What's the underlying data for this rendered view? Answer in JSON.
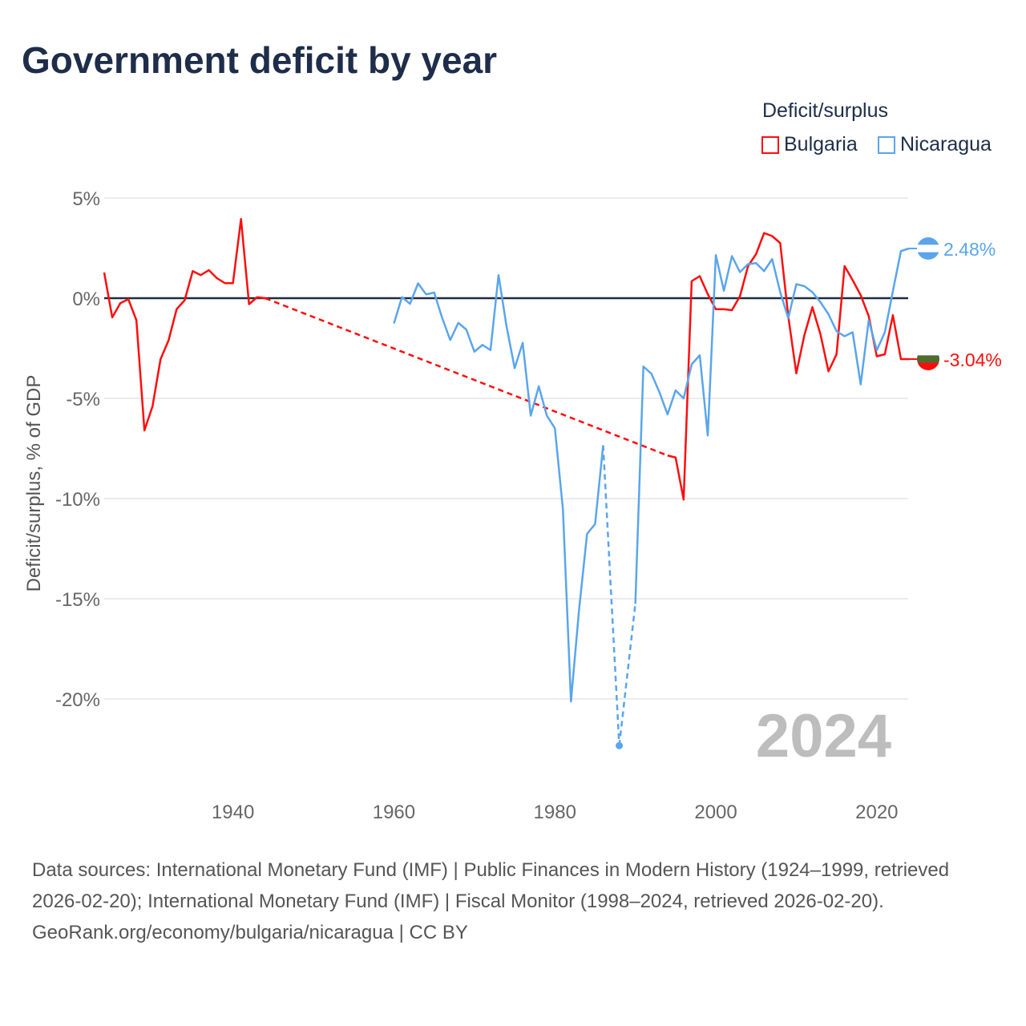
{
  "title": "Government deficit by year",
  "legend": {
    "title": "Deficit/surplus",
    "placement": "top-right"
  },
  "footer": {
    "sources": "Data sources: International Monetary Fund (IMF) | Public Finances in Modern History (1924–1999, retrieved 2026-02-20); International Monetary Fund (IMF) | Fiscal Monitor (1998–2024, retrieved 2026-02-20).",
    "credit": "GeoRank.org/economy/bulgaria/nicaragua | CC BY"
  },
  "chart_data": {
    "type": "line",
    "title": "Government deficit by year",
    "xlabel": "",
    "ylabel": "Deficit/surplus, % of GDP",
    "xlim": [
      1924,
      2024
    ],
    "ylim": [
      -24,
      5.5
    ],
    "x_ticks": [
      {
        "v": 1940,
        "label": "1940"
      },
      {
        "v": 1960,
        "label": "1960"
      },
      {
        "v": 1980,
        "label": "1980"
      },
      {
        "v": 2000,
        "label": "2000"
      },
      {
        "v": 2020,
        "label": "2020"
      }
    ],
    "y_ticks": [
      {
        "v": 5,
        "label": "5%"
      },
      {
        "v": 0,
        "label": "0%"
      },
      {
        "v": -5,
        "label": "-5%"
      },
      {
        "v": -10,
        "label": "-10%"
      },
      {
        "v": -15,
        "label": "-15%"
      },
      {
        "v": -20,
        "label": "-20%"
      }
    ],
    "grid": true,
    "watermark_year": "2024",
    "series": [
      {
        "name": "Bulgaria",
        "color": "#ff0d0d",
        "end_label": "-3.04%",
        "flag": [
          "#ffffff",
          "#4f6b2e",
          "#ff0d0d"
        ],
        "points": [
          [
            1924,
            1.28
          ],
          [
            1925,
            -0.96
          ],
          [
            1926,
            -0.25
          ],
          [
            1927,
            -0.05
          ],
          [
            1928,
            -1.1
          ],
          [
            1929,
            -6.6
          ],
          [
            1930,
            -5.4
          ],
          [
            1931,
            -3.05
          ],
          [
            1932,
            -2.1
          ],
          [
            1933,
            -0.55
          ],
          [
            1934,
            -0.1
          ],
          [
            1935,
            1.35
          ],
          [
            1936,
            1.15
          ],
          [
            1937,
            1.4
          ],
          [
            1938,
            1.0
          ],
          [
            1939,
            0.75
          ],
          [
            1940,
            0.75
          ],
          [
            1941,
            3.95
          ],
          [
            1942,
            -0.3
          ],
          [
            1943,
            0.05
          ],
          [
            1944,
            0.0
          ],
          [
            1994,
            -7.85
          ],
          [
            1995,
            -7.95
          ],
          [
            1996,
            -10.05
          ],
          [
            1997,
            0.85
          ],
          [
            1998,
            1.1
          ],
          [
            1999,
            0.2
          ],
          [
            2000,
            -0.55
          ],
          [
            2001,
            -0.55
          ],
          [
            2002,
            -0.6
          ],
          [
            2003,
            0.1
          ],
          [
            2004,
            1.6
          ],
          [
            2005,
            2.2
          ],
          [
            2006,
            3.25
          ],
          [
            2007,
            3.1
          ],
          [
            2008,
            2.75
          ],
          [
            2009,
            -0.9
          ],
          [
            2010,
            -3.75
          ],
          [
            2011,
            -1.85
          ],
          [
            2012,
            -0.45
          ],
          [
            2013,
            -1.8
          ],
          [
            2014,
            -3.65
          ],
          [
            2015,
            -2.8
          ],
          [
            2016,
            1.6
          ],
          [
            2017,
            0.9
          ],
          [
            2018,
            0.15
          ],
          [
            2019,
            -0.9
          ],
          [
            2020,
            -2.9
          ],
          [
            2021,
            -2.8
          ],
          [
            2022,
            -0.85
          ],
          [
            2023,
            -3.04
          ],
          [
            2024,
            -3.04
          ]
        ]
      },
      {
        "name": "Nicaragua",
        "color": "#5aa5ec",
        "end_label": "2.48%",
        "flag": [
          "#5aa5ec",
          "#ffffff",
          "#5aa5ec"
        ],
        "points": [
          [
            1960,
            -1.26
          ],
          [
            1961,
            0.05
          ],
          [
            1962,
            -0.28
          ],
          [
            1963,
            0.74
          ],
          [
            1964,
            0.19
          ],
          [
            1965,
            0.28
          ],
          [
            1966,
            -0.99
          ],
          [
            1967,
            -2.09
          ],
          [
            1968,
            -1.23
          ],
          [
            1969,
            -1.57
          ],
          [
            1970,
            -2.67
          ],
          [
            1971,
            -2.33
          ],
          [
            1972,
            -2.59
          ],
          [
            1973,
            1.15
          ],
          [
            1974,
            -1.42
          ],
          [
            1975,
            -3.49
          ],
          [
            1976,
            -2.23
          ],
          [
            1977,
            -5.86
          ],
          [
            1978,
            -4.4
          ],
          [
            1979,
            -5.86
          ],
          [
            1980,
            -6.49
          ],
          [
            1981,
            -10.53
          ],
          [
            1982,
            -20.13
          ],
          [
            1983,
            -15.57
          ],
          [
            1984,
            -11.76
          ],
          [
            1985,
            -11.27
          ],
          [
            1986,
            -7.34
          ],
          [
            1988,
            -22.33
          ],
          [
            1990,
            -15.25
          ],
          [
            1991,
            -3.41
          ],
          [
            1992,
            -3.77
          ],
          [
            1993,
            -4.7
          ],
          [
            1994,
            -5.8
          ],
          [
            1995,
            -4.6
          ],
          [
            1996,
            -5.0
          ],
          [
            1997,
            -3.3
          ],
          [
            1998,
            -2.85
          ],
          [
            1999,
            -6.85
          ],
          [
            2000,
            2.15
          ],
          [
            2001,
            0.37
          ],
          [
            2002,
            2.1
          ],
          [
            2003,
            1.3
          ],
          [
            2004,
            1.7
          ],
          [
            2005,
            1.75
          ],
          [
            2006,
            1.35
          ],
          [
            2007,
            1.95
          ],
          [
            2008,
            0.3
          ],
          [
            2009,
            -1.0
          ],
          [
            2010,
            0.7
          ],
          [
            2011,
            0.6
          ],
          [
            2012,
            0.3
          ],
          [
            2013,
            -0.2
          ],
          [
            2014,
            -0.8
          ],
          [
            2015,
            -1.65
          ],
          [
            2016,
            -1.9
          ],
          [
            2017,
            -1.7
          ],
          [
            2018,
            -4.3
          ],
          [
            2019,
            -1.1
          ],
          [
            2020,
            -2.6
          ],
          [
            2021,
            -1.7
          ],
          [
            2022,
            0.35
          ],
          [
            2023,
            2.35
          ],
          [
            2024,
            2.48
          ]
        ]
      }
    ]
  }
}
